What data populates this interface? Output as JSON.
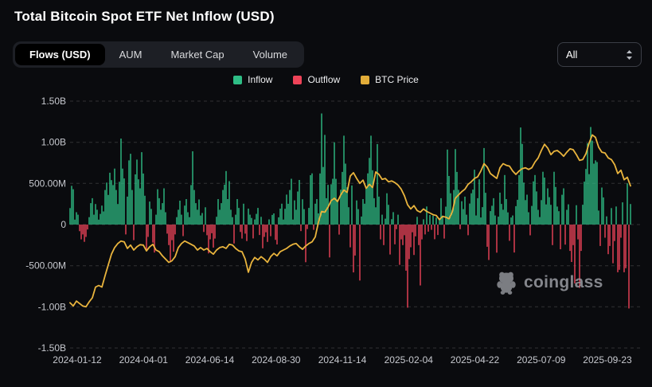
{
  "header": {
    "title": "Total Bitcoin Spot ETF Net Inflow (USD)"
  },
  "toolbar": {
    "tabs": [
      {
        "label": "Flows (USD)",
        "active": true
      },
      {
        "label": "AUM",
        "active": false
      },
      {
        "label": "Market Cap",
        "active": false
      },
      {
        "label": "Volume",
        "active": false
      }
    ],
    "range_select": {
      "value": "All"
    }
  },
  "legend": [
    {
      "label": "Inflow",
      "color": "#2EBD85"
    },
    {
      "label": "Outflow",
      "color": "#EE4358"
    },
    {
      "label": "BTC Price",
      "color": "#E2AD39"
    }
  ],
  "watermark": {
    "label": "coinglass"
  },
  "colors": {
    "inflow": "#2EBD85",
    "outflow": "#EE4358",
    "btc_line": "#E9B43D",
    "grid": "rgba(255,255,255,0.16)",
    "tick_text": "#C7C9CF"
  },
  "chart_data": {
    "type": "bar",
    "title": "Total Bitcoin Spot ETF Net Inflow (USD)",
    "grid": "horizontal-dashed",
    "legend_position": "top-center",
    "y_axis": {
      "tick_labels": [
        "1.50B",
        "1.00B",
        "500.00M",
        "0",
        "-500.00M",
        "-1.00B",
        "-1.50B"
      ],
      "tick_values_musd": [
        1500,
        1000,
        500,
        0,
        -500,
        -1000,
        -1500
      ],
      "lim_musd": [
        -1500,
        1500
      ]
    },
    "x_axis": {
      "tick_labels": [
        "2024-01-12",
        "2024-04-01",
        "2024-06-14",
        "2024-08-30",
        "2024-11-14",
        "2025-02-04",
        "2025-04-22",
        "2025-07-09",
        "2025-09-23"
      ]
    },
    "series": [
      {
        "name": "Net Flow (Inflow/Outflow)",
        "type": "bar",
        "unit": "USD millions (approx., sampled ~2-day)",
        "values_musd": [
          200,
          470,
          430,
          60,
          150,
          120,
          -80,
          -180,
          -120,
          -210,
          -150,
          -60,
          90,
          260,
          320,
          120,
          250,
          180,
          60,
          130,
          230,
          160,
          420,
          510,
          360,
          630,
          540,
          480,
          680,
          420,
          250,
          520,
          1045,
          680,
          560,
          -120,
          340,
          780,
          860,
          420,
          -190,
          610,
          790,
          550,
          440,
          880,
          620,
          350,
          -310,
          -150,
          280,
          190,
          -220,
          -340,
          120,
          430,
          320,
          180,
          260,
          440,
          150,
          -110,
          -250,
          -460,
          -190,
          -330,
          -120,
          90,
          180,
          290,
          120,
          -140,
          230,
          310,
          150,
          90,
          480,
          890,
          420,
          260,
          180,
          305,
          110,
          140,
          -90,
          210,
          -130,
          -350,
          -180,
          -105,
          -280,
          -170,
          95,
          310,
          180,
          260,
          420,
          485,
          650,
          310,
          527,
          180,
          90,
          -230,
          120,
          310,
          202,
          -90,
          -170,
          254,
          -110,
          -200,
          194,
          120,
          80,
          -168,
          62,
          130,
          202,
          -127,
          94,
          -288,
          -150,
          -94,
          -211,
          63,
          -141,
          117,
          135,
          -186,
          -242,
          88,
          194,
          254,
          61,
          192,
          364,
          253,
          420,
          556,
          61,
          294,
          180,
          402,
          542,
          -79,
          308,
          188,
          -458,
          -55,
          202,
          600,
          622,
          -64,
          254,
          310,
          135,
          621,
          1350,
          700,
          1090,
          320,
          483,
          -400,
          490,
          556,
          1000,
          555,
          305,
          -122,
          424,
          640,
          1080,
          740,
          453,
          211,
          -277,
          475,
          -582,
          -376,
          293,
          188,
          -680,
          98,
          310,
          254,
          450,
          622,
          810,
          1080,
          660,
          320,
          210,
          978,
          340,
          -180,
          120,
          -250,
          72,
          380,
          240,
          -364,
          66,
          151,
          -240,
          -56,
          120,
          -490,
          -180,
          -250,
          -130,
          -560,
          -1010,
          -420,
          -276,
          -94,
          -370,
          -143,
          94,
          -250,
          -740,
          -180,
          64,
          -120,
          220,
          -86,
          116,
          -64,
          108,
          -178,
          84,
          -127,
          66,
          320,
          108,
          -170,
          218,
          912,
          590,
          380,
          172,
          420,
          917,
          640,
          422,
          -56,
          284,
          188,
          340,
          120,
          -130,
          255,
          380,
          425,
          667,
          110,
          320,
          550,
          86,
          212,
          930,
          386,
          -270,
          -431,
          164,
          228,
          320,
          110,
          -342,
          96,
          388,
          251,
          180,
          602,
          310,
          148,
          -197,
          86,
          110,
          -340,
          224,
          301,
          601,
          1180,
          980,
          510,
          297,
          363,
          150,
          -131,
          226,
          524,
          602,
          403,
          179,
          91,
          297,
          642,
          571,
          245,
          440,
          333,
          240,
          -250,
          642,
          457,
          219,
          163,
          -300,
          362,
          440,
          -244,
          179,
          246,
          -320,
          -455,
          -250,
          -715,
          235,
          -180,
          -770,
          -320,
          241,
          522,
          675,
          988,
          613,
          1185,
          1020,
          740,
          780,
          760,
          170,
          -260,
          450,
          330,
          -160,
          100,
          -360,
          -260,
          200,
          -470,
          -200,
          220,
          -580,
          -550,
          -160,
          270,
          -580,
          -530,
          500,
          -1020,
          250
        ]
      },
      {
        "name": "BTC Price",
        "type": "line",
        "unit": "plotted position on left axis (no visible price axis), USD millions equivalent",
        "values_musd": [
          -950,
          -990,
          -930,
          -960,
          -990,
          -1000,
          -940,
          -890,
          -760,
          -740,
          -760,
          -620,
          -490,
          -360,
          -280,
          -230,
          -200,
          -210,
          -290,
          -250,
          -310,
          -270,
          -245,
          -250,
          -320,
          -270,
          -240,
          -310,
          -330,
          -380,
          -420,
          -460,
          -440,
          -390,
          -280,
          -230,
          -200,
          -220,
          -240,
          -260,
          -310,
          -280,
          -310,
          -290,
          -330,
          -360,
          -310,
          -280,
          -270,
          -290,
          -240,
          -250,
          -290,
          -320,
          -330,
          -420,
          -580,
          -460,
          -400,
          -430,
          -390,
          -420,
          -460,
          -390,
          -350,
          -380,
          -330,
          -310,
          -290,
          -260,
          -240,
          -230,
          -270,
          -300,
          -260,
          -230,
          -210,
          -150,
          30,
          160,
          150,
          210,
          290,
          320,
          280,
          360,
          420,
          390,
          590,
          630,
          560,
          500,
          540,
          440,
          490,
          450,
          640,
          610,
          550,
          560,
          520,
          530,
          510,
          480,
          430,
          350,
          240,
          190,
          230,
          170,
          150,
          190,
          160,
          140,
          120,
          110,
          60,
          100,
          90,
          70,
          150,
          320,
          360,
          400,
          430,
          490,
          520,
          560,
          580,
          650,
          740,
          700,
          620,
          590,
          560,
          690,
          740,
          720,
          710,
          650,
          610,
          650,
          680,
          690,
          670,
          690,
          760,
          810,
          900,
          975,
          930,
          850,
          890,
          900,
          870,
          830,
          880,
          920,
          910,
          850,
          780,
          790,
          860,
          990,
          1090,
          1060,
          940,
          880,
          870,
          810,
          790,
          730,
          620,
          660,
          545,
          575,
          470
        ]
      }
    ]
  }
}
